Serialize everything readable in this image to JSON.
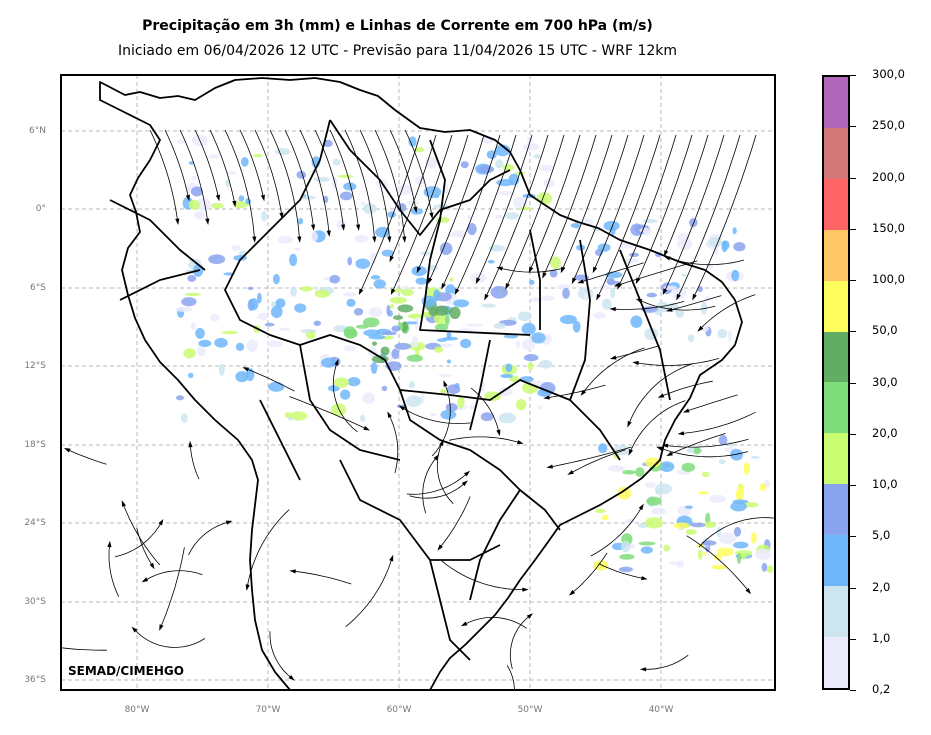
{
  "title": "Precipitação em 3h (mm) e Linhas de Corrente em 700 hPa (m/s)",
  "subtitle": "Iniciado em 06/04/2026 12 UTC - Previsão para 11/04/2026 15 UTC - WRF 12km",
  "credit": "SEMAD/CIMEHGO",
  "map": {
    "lon_range": [
      -86,
      -31.5
    ],
    "lat_range": [
      -37,
      10
    ],
    "lat_ticks": [
      "6°N",
      "0°",
      "6°S",
      "12°S",
      "18°S",
      "24°S",
      "30°S",
      "36°S"
    ],
    "lon_ticks": [
      "80°W",
      "70°W",
      "60°W",
      "50°W",
      "40°W"
    ],
    "grid": true
  },
  "colorbar": {
    "labels": [
      "0,2",
      "1,0",
      "2,0",
      "5,0",
      "10,0",
      "20,0",
      "30,0",
      "50,0",
      "100,0",
      "150,0",
      "200,0",
      "250,0",
      "300,0"
    ],
    "colors": [
      "#ecebfb",
      "#cde5ef",
      "#70b7fa",
      "#8aa3ee",
      "#cafc72",
      "#7fdc7a",
      "#62ad63",
      "#fdfd5e",
      "#fec766",
      "#fe6465",
      "#d27877",
      "#b066b9"
    ]
  }
}
